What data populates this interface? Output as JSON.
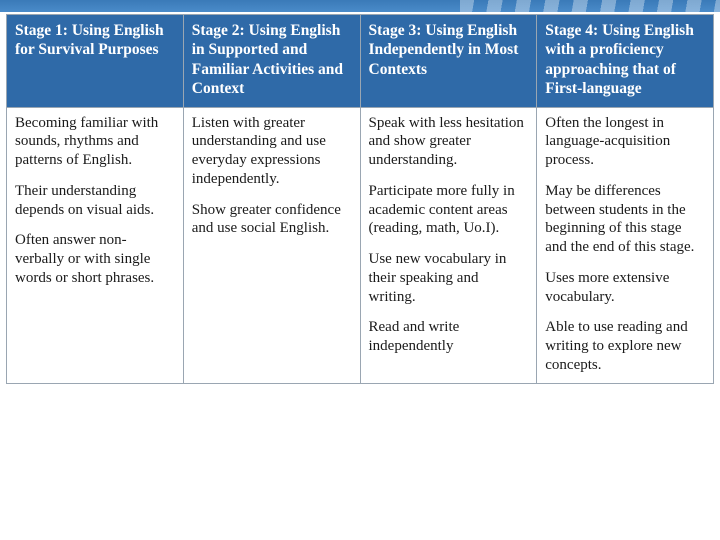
{
  "table": {
    "type": "table",
    "header_bg": "#2f6aa8",
    "header_text_color": "#ffffff",
    "border_color": "#9aa6b2",
    "body_text_color": "#1a1a1a",
    "font_family": "Georgia, serif",
    "header_fontsize_pt": 12,
    "body_fontsize_pt": 11,
    "columns": [
      "Stage 1: Using English for Survival Purposes",
      "Stage 2: Using English in Supported and Familiar Activities and Context",
      "Stage 3: Using English Independently in Most Contexts",
      "Stage 4: Using English with a proficiency approaching that of First-language"
    ],
    "rows": [
      [
        [
          "Becoming familiar with sounds, rhythms and patterns of English.",
          "Their understanding depends on visual aids.",
          "Often answer non-verbally or with single words or short phrases."
        ],
        [
          "Listen with greater understanding and use everyday expressions independently.",
          "Show greater confidence and use social English."
        ],
        [
          "Speak with less hesitation and show greater understanding.",
          "Participate more fully in academic content areas (reading, math, Uo.I).",
          "Use new vocabulary in their speaking and writing.",
          "Read and write independently"
        ],
        [
          "Often the longest in language-acquisition process.",
          "May be differences between students in the beginning of this stage and the end of this stage.",
          "Uses more extensive vocabulary.",
          "Able to use reading and writing to explore new concepts."
        ]
      ]
    ]
  },
  "accent": {
    "top_bar_color": "#3a7ab8",
    "stripe_color": "rgba(255,255,255,0.35)"
  }
}
